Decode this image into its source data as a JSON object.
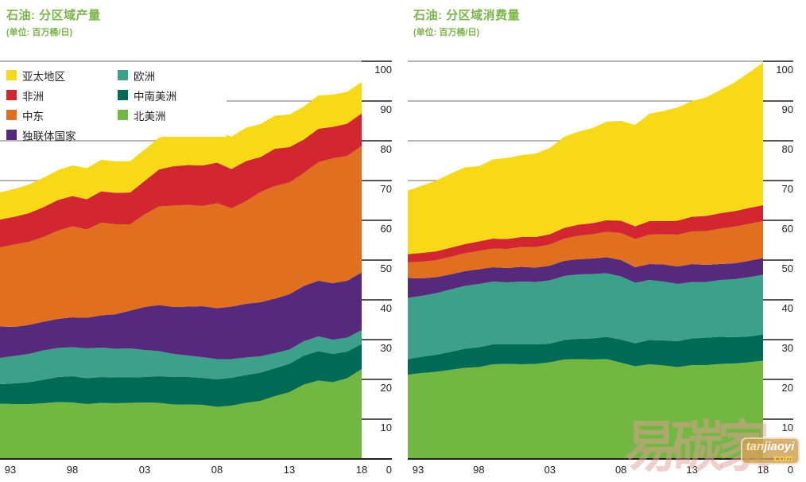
{
  "charts": [
    {
      "title": "石油: 分区域产量",
      "subtitle": "(单位: 百万桶/日)"
    },
    {
      "title": "石油: 分区域消费量",
      "subtitle": "(单位: 百万桶/日)"
    }
  ],
  "chart_data": [
    {
      "type": "area",
      "stacked": true,
      "title": "石油: 分区域产量",
      "unit": "百万桶/日",
      "x_years": [
        1993,
        1994,
        1995,
        1996,
        1997,
        1998,
        1999,
        2000,
        2001,
        2002,
        2003,
        2004,
        2005,
        2006,
        2007,
        2008,
        2009,
        2010,
        2011,
        2012,
        2013,
        2014,
        2015,
        2016,
        2017,
        2018
      ],
      "x_tick_years": [
        1993,
        1998,
        2003,
        2008,
        2013,
        2018
      ],
      "x_tick_labels": [
        "93",
        "98",
        "03",
        "08",
        "13",
        "18"
      ],
      "ylim": [
        0,
        100
      ],
      "y_tick_step": 10,
      "grid": true,
      "series": [
        {
          "name": "北美洲",
          "color": "#72B742",
          "values": [
            13.9,
            13.8,
            13.8,
            14.0,
            14.3,
            14.2,
            13.8,
            14.1,
            14.0,
            14.1,
            14.2,
            14.1,
            13.7,
            13.7,
            13.6,
            13.1,
            13.4,
            14.1,
            14.6,
            15.8,
            16.8,
            18.7,
            19.7,
            19.3,
            20.3,
            22.6
          ]
        },
        {
          "name": "中南美洲",
          "color": "#006B54",
          "values": [
            4.9,
            5.2,
            5.5,
            5.9,
            6.3,
            6.6,
            6.5,
            6.5,
            6.5,
            6.4,
            6.4,
            6.7,
            6.9,
            6.9,
            6.8,
            6.9,
            7.0,
            7.0,
            7.1,
            7.0,
            7.1,
            7.3,
            7.4,
            7.1,
            6.7,
            6.3
          ]
        },
        {
          "name": "欧洲",
          "color": "#3DA08A",
          "values": [
            6.6,
            6.9,
            7.1,
            7.4,
            7.3,
            7.3,
            7.5,
            7.4,
            7.2,
            7.3,
            6.8,
            6.3,
            5.8,
            5.4,
            5.2,
            5.1,
            4.7,
            4.4,
            4.1,
            3.8,
            3.6,
            3.6,
            3.7,
            3.6,
            3.5,
            3.5
          ]
        },
        {
          "name": "独联体国家",
          "color": "#55297B",
          "values": [
            7.9,
            7.3,
            7.3,
            7.2,
            7.3,
            7.5,
            7.7,
            8.1,
            8.7,
            9.5,
            10.8,
            11.6,
            11.8,
            12.3,
            12.8,
            12.8,
            13.2,
            13.5,
            13.6,
            13.7,
            13.9,
            13.9,
            14.0,
            14.2,
            14.3,
            14.5
          ]
        },
        {
          "name": "中东",
          "color": "#E0701F",
          "values": [
            19.9,
            20.7,
            20.9,
            21.3,
            22.2,
            22.9,
            22.2,
            23.3,
            22.6,
            21.7,
            23.3,
            24.8,
            25.5,
            25.6,
            25.2,
            26.4,
            24.7,
            25.8,
            27.7,
            28.3,
            28.1,
            28.4,
            29.8,
            31.4,
            31.4,
            31.8
          ]
        },
        {
          "name": "非洲",
          "color": "#D22630",
          "values": [
            7.0,
            7.0,
            7.2,
            7.5,
            7.7,
            7.6,
            7.6,
            7.9,
            7.9,
            8.0,
            8.4,
            9.3,
            9.9,
            10.0,
            10.2,
            10.2,
            9.9,
            10.1,
            8.8,
            9.4,
            8.9,
            8.4,
            8.4,
            7.9,
            8.1,
            8.2
          ]
        },
        {
          "name": "亚太地区",
          "color": "#F7D917",
          "values": [
            6.8,
            7.0,
            7.2,
            7.4,
            7.5,
            7.7,
            7.8,
            7.9,
            7.9,
            7.9,
            7.9,
            8.0,
            8.1,
            8.1,
            8.2,
            8.1,
            8.1,
            8.4,
            8.3,
            8.3,
            8.2,
            8.3,
            8.4,
            8.1,
            8.0,
            7.9
          ]
        }
      ]
    },
    {
      "type": "area",
      "stacked": true,
      "title": "石油: 分区域消费量",
      "unit": "百万桶/日",
      "x_years": [
        1993,
        1994,
        1995,
        1996,
        1997,
        1998,
        1999,
        2000,
        2001,
        2002,
        2003,
        2004,
        2005,
        2006,
        2007,
        2008,
        2009,
        2010,
        2011,
        2012,
        2013,
        2014,
        2015,
        2016,
        2017,
        2018
      ],
      "x_tick_years": [
        1993,
        1998,
        2003,
        2008,
        2013,
        2018
      ],
      "x_tick_labels": [
        "93",
        "98",
        "03",
        "08",
        "13",
        "18"
      ],
      "ylim": [
        0,
        100
      ],
      "y_tick_step": 10,
      "grid": true,
      "series": [
        {
          "name": "北美洲",
          "color": "#72B742",
          "values": [
            21.2,
            21.6,
            21.9,
            22.4,
            22.9,
            23.1,
            23.8,
            23.9,
            23.8,
            23.9,
            24.3,
            25.0,
            25.1,
            25.0,
            25.1,
            24.2,
            23.3,
            23.8,
            23.5,
            23.1,
            23.6,
            23.6,
            23.9,
            24.0,
            24.3,
            24.7
          ]
        },
        {
          "name": "中南美洲",
          "color": "#006B54",
          "values": [
            3.9,
            4.1,
            4.3,
            4.5,
            4.8,
            5.0,
            5.0,
            4.9,
            5.0,
            4.9,
            4.7,
            4.9,
            5.1,
            5.3,
            5.6,
            5.8,
            5.8,
            6.1,
            6.3,
            6.5,
            6.7,
            6.9,
            6.8,
            6.6,
            6.5,
            6.6
          ]
        },
        {
          "name": "欧洲",
          "color": "#3DA08A",
          "values": [
            15.4,
            15.3,
            15.5,
            15.7,
            15.8,
            15.9,
            15.8,
            15.6,
            15.8,
            15.7,
            15.9,
            16.1,
            16.2,
            16.2,
            16.0,
            15.9,
            15.2,
            15.1,
            14.8,
            14.4,
            14.2,
            14.0,
            14.3,
            14.6,
            14.9,
            15.0
          ]
        },
        {
          "name": "独联体国家",
          "color": "#55297B",
          "values": [
            5.0,
            4.4,
            4.0,
            3.8,
            3.7,
            3.7,
            3.6,
            3.6,
            3.7,
            3.6,
            3.7,
            3.8,
            3.8,
            3.9,
            4.0,
            4.1,
            3.9,
            4.0,
            4.3,
            4.4,
            4.5,
            4.3,
            4.0,
            4.0,
            4.1,
            4.2
          ]
        },
        {
          "name": "中东",
          "color": "#E0701F",
          "values": [
            3.9,
            4.2,
            4.3,
            4.4,
            4.5,
            4.6,
            4.7,
            4.8,
            5.0,
            5.2,
            5.3,
            5.6,
            5.9,
            6.1,
            6.4,
            6.8,
            7.1,
            7.4,
            7.6,
            8.0,
            8.2,
            8.5,
            8.9,
            9.2,
            9.3,
            9.3
          ]
        },
        {
          "name": "非洲",
          "color": "#D22630",
          "values": [
            2.1,
            2.2,
            2.2,
            2.3,
            2.3,
            2.4,
            2.5,
            2.5,
            2.5,
            2.5,
            2.6,
            2.7,
            2.8,
            2.8,
            2.9,
            3.1,
            3.2,
            3.4,
            3.3,
            3.5,
            3.7,
            3.8,
            3.9,
            3.9,
            4.0,
            4.0
          ]
        },
        {
          "name": "亚太地区",
          "color": "#F7D917",
          "values": [
            16.0,
            16.9,
            17.8,
            18.6,
            19.3,
            18.9,
            19.9,
            20.4,
            20.6,
            21.0,
            21.7,
            22.9,
            23.4,
            23.9,
            24.8,
            25.1,
            25.5,
            27.0,
            27.7,
            28.5,
            29.1,
            29.8,
            31.0,
            32.4,
            34.0,
            35.9
          ]
        }
      ]
    }
  ],
  "legend": {
    "position": "top-left-of-first-chart",
    "items": [
      {
        "label": "亚太地区",
        "color": "#F7D917"
      },
      {
        "label": "非洲",
        "color": "#D22630"
      },
      {
        "label": "中东",
        "color": "#E0701F"
      },
      {
        "label": "独联体国家",
        "color": "#55297B"
      },
      {
        "label": "欧洲",
        "color": "#3DA08A"
      },
      {
        "label": "中南美洲",
        "color": "#006B54"
      },
      {
        "label": "北美洲",
        "color": "#72B742"
      }
    ]
  },
  "watermark": {
    "brand_text": "易碳家",
    "badge_line1_prefix": "tan",
    "badge_line1_suffix": "jiaoyi",
    "badge_line2": "com"
  },
  "colors": {
    "title_green": "#7AB648",
    "axis_text": "#231F20",
    "gridline": "#6D6E71",
    "baseline": "#231F20"
  }
}
